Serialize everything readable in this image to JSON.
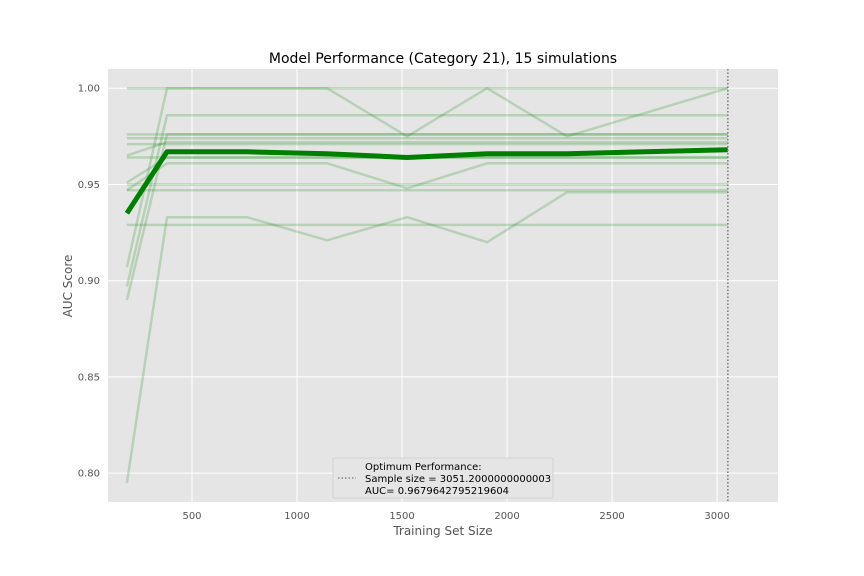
{
  "chart_data": {
    "type": "line",
    "title": "Model Performance (Category 21), 15 simulations",
    "xlabel": "Training Set Size",
    "ylabel": "AUC Score",
    "xlim": [
      100,
      3290
    ],
    "ylim": [
      0.785,
      1.01
    ],
    "xticks": [
      500,
      1000,
      1500,
      2000,
      2500,
      3000
    ],
    "yticks": [
      0.8,
      0.85,
      0.9,
      0.95,
      1.0
    ],
    "xtick_labels": [
      "500",
      "1000",
      "1500",
      "2000",
      "2500",
      "3000"
    ],
    "ytick_labels": [
      "0.80",
      "0.85",
      "0.90",
      "0.95",
      "1.00"
    ],
    "grid": true,
    "x": [
      190,
      381,
      762,
      1143,
      1524,
      1905,
      2286,
      3051
    ],
    "series": [
      {
        "values": [
          0.795,
          0.933,
          0.933,
          0.921,
          0.933,
          0.92,
          0.946,
          0.946
        ]
      },
      {
        "values": [
          0.89,
          0.976,
          0.976,
          0.976,
          0.976,
          0.976,
          0.976,
          0.976
        ]
      },
      {
        "values": [
          0.897,
          0.986,
          0.986,
          0.986,
          0.986,
          0.986,
          0.986,
          0.986
        ]
      },
      {
        "values": [
          0.907,
          1.0,
          1.0,
          1.0,
          0.975,
          1.0,
          0.975,
          1.0
        ]
      },
      {
        "values": [
          0.947,
          0.961,
          0.961,
          0.961,
          0.948,
          0.961,
          0.961,
          0.961
        ]
      },
      {
        "values": [
          0.951,
          0.964,
          0.964,
          0.964,
          0.964,
          0.964,
          0.964,
          0.964
        ]
      },
      {
        "values": [
          0.929,
          0.929,
          0.929,
          0.929,
          0.929,
          0.929,
          0.929,
          0.929
        ]
      },
      {
        "values": [
          0.947,
          0.947,
          0.947,
          0.947,
          0.947,
          0.947,
          0.947,
          0.947
        ]
      },
      {
        "values": [
          0.95,
          0.95,
          0.95,
          0.95,
          0.95,
          0.95,
          0.95,
          0.95
        ]
      },
      {
        "values": [
          0.964,
          0.964,
          0.964,
          0.964,
          0.964,
          0.964,
          0.964,
          0.964
        ]
      },
      {
        "values": [
          0.971,
          0.971,
          0.971,
          0.971,
          0.971,
          0.971,
          0.971,
          0.971
        ]
      },
      {
        "values": [
          0.974,
          0.974,
          0.974,
          0.974,
          0.974,
          0.974,
          0.974,
          0.974
        ]
      },
      {
        "values": [
          0.976,
          0.976,
          0.976,
          0.976,
          0.976,
          0.976,
          0.976,
          0.976
        ]
      },
      {
        "values": [
          1.0,
          1.0,
          1.0,
          1.0,
          1.0,
          1.0,
          1.0,
          1.0
        ]
      },
      {
        "values": [
          0.965,
          0.972,
          0.972,
          0.972,
          0.972,
          0.972,
          0.972,
          0.972
        ]
      }
    ],
    "mean_series": {
      "values": [
        0.935,
        0.967,
        0.967,
        0.966,
        0.964,
        0.966,
        0.966,
        0.968
      ]
    },
    "optimum_x": 3051.2000000000003,
    "legend": {
      "placement": "bottom-center",
      "lines": [
        "Optimum Performance:",
        "Sample size = 3051.2000000000003",
        "AUC= 0.9679642795219604"
      ]
    },
    "colors": {
      "background": "#e5e5e5",
      "grid": "#ffffff",
      "sim_line": "#008000",
      "mean_line": "#008000",
      "optimum_line": "#777777"
    }
  }
}
